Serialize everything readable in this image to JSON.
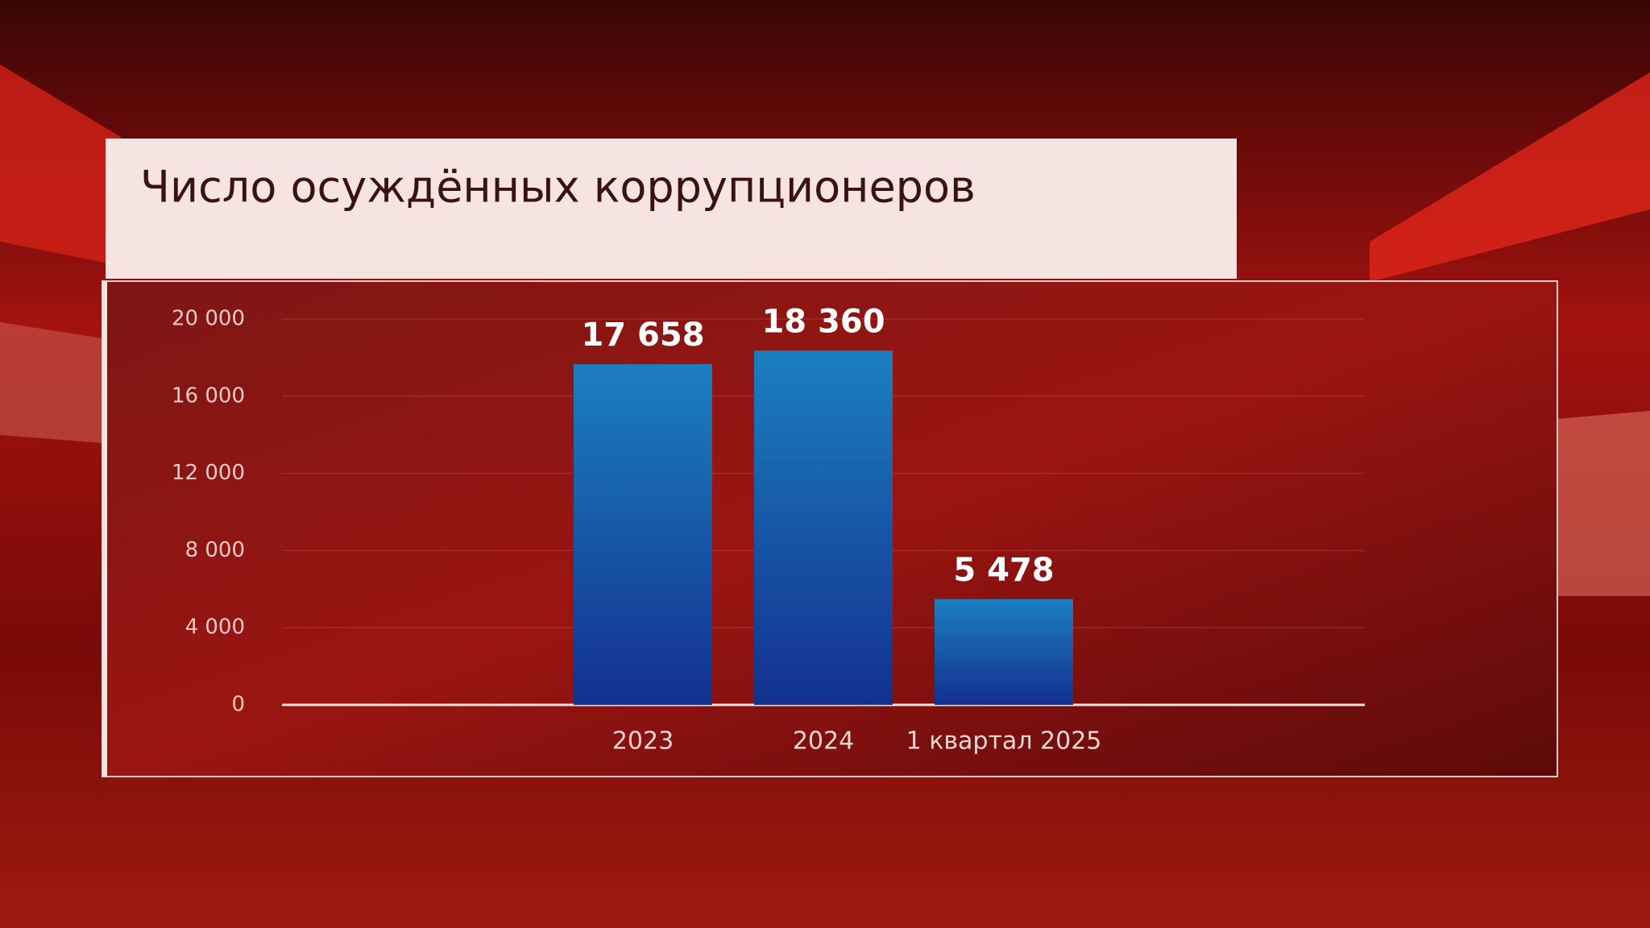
{
  "chart_data": {
    "type": "bar",
    "title": "Число осуждённых коррупционеров",
    "categories": [
      "2023",
      "2024",
      "1 квартал 2025"
    ],
    "values": [
      17658,
      18360,
      5478
    ],
    "value_labels": [
      "17 658",
      "18 360",
      "5 478"
    ],
    "color": "#1b7fc0",
    "ylim": [
      0,
      20000
    ],
    "yticks": [
      0,
      {
        "value": 4000,
        "label": "4 000"
      },
      {
        "value": 8000,
        "label": "8 000"
      },
      {
        "value": 12000,
        "label": "12 000"
      },
      {
        "value": 16000,
        "label": "16 000"
      },
      {
        "value": 20000,
        "label": "20 000"
      }
    ],
    "grid": true
  }
}
